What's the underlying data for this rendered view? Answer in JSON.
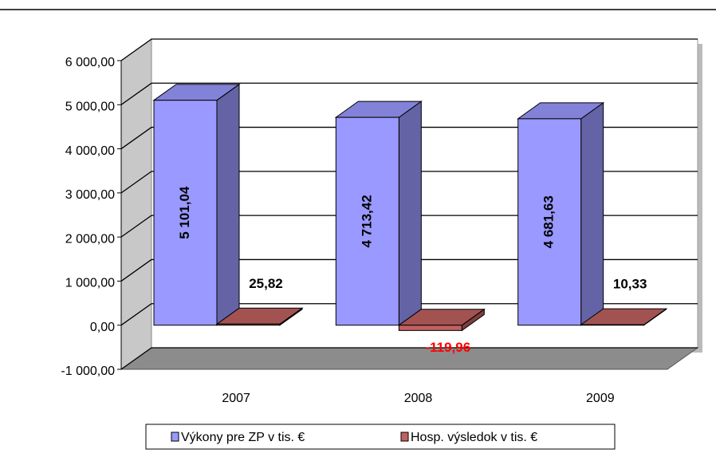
{
  "chart_data": {
    "type": "bar3d",
    "categories": [
      "2007",
      "2008",
      "2009"
    ],
    "series": [
      {
        "name": "Výkony pre ZP v tis. €",
        "color": "#9999ff",
        "values": [
          5101.04,
          4713.42,
          4681.63
        ],
        "value_labels": [
          "5 101,04",
          "4 713,42",
          "4 681,63"
        ]
      },
      {
        "name": "Hosp. výsledok v tis. €",
        "color": "#c06060",
        "values": [
          25.82,
          -119.96,
          10.33
        ],
        "value_labels": [
          "25,82",
          "-119,96",
          "10,33"
        ]
      }
    ],
    "ylim": [
      -1000,
      6000
    ],
    "yticks": [
      {
        "value": -1000,
        "label": "-1 000,00"
      },
      {
        "value": 0,
        "label": "0,00"
      },
      {
        "value": 1000,
        "label": "1 000,00"
      },
      {
        "value": 2000,
        "label": "2 000,00"
      },
      {
        "value": 3000,
        "label": "3 000,00"
      },
      {
        "value": 4000,
        "label": "4 000,00"
      },
      {
        "value": 5000,
        "label": "5 000,00"
      },
      {
        "value": 6000,
        "label": "6 000,00"
      }
    ],
    "grid": true,
    "legend": "bottom"
  }
}
